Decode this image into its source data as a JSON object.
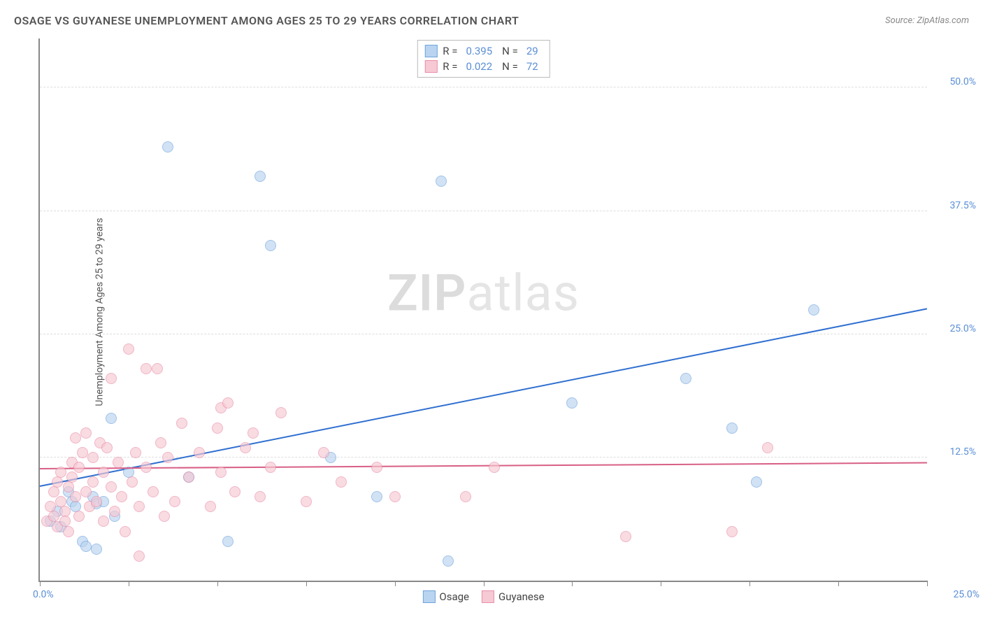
{
  "title": "OSAGE VS GUYANESE UNEMPLOYMENT AMONG AGES 25 TO 29 YEARS CORRELATION CHART",
  "source_prefix": "Source: ",
  "source_name": "ZipAtlas.com",
  "y_axis_label": "Unemployment Among Ages 25 to 29 years",
  "watermark_bold": "ZIP",
  "watermark_light": "atlas",
  "chart": {
    "type": "scatter",
    "xlim": [
      0,
      25
    ],
    "ylim": [
      0,
      55
    ],
    "x_tick_positions": [
      0,
      2.5,
      5,
      7.5,
      10,
      12.5,
      15,
      17.5,
      20,
      22.5,
      25
    ],
    "x_tick_label_left": "0.0%",
    "x_tick_label_right": "25.0%",
    "y_gridlines": [
      12.5,
      25.0,
      37.5,
      50.0
    ],
    "y_tick_labels": [
      "12.5%",
      "25.0%",
      "37.5%",
      "50.0%"
    ],
    "grid_color": "#dddddd",
    "axis_color": "#888888",
    "background_color": "#ffffff",
    "marker_size": 16,
    "marker_opacity": 0.65,
    "series": [
      {
        "name": "Osage",
        "fill": "#b9d4f0",
        "stroke": "#6fa3dd",
        "r_label": "R =",
        "r_value": "0.395",
        "n_label": "N =",
        "n_value": "29",
        "trend": {
          "x1": 0,
          "y1": 9.5,
          "x2": 25,
          "y2": 27.5,
          "color": "#2f6fd0",
          "width": 2
        },
        "points": [
          [
            0.3,
            6.0
          ],
          [
            0.5,
            7.0
          ],
          [
            0.6,
            5.5
          ],
          [
            0.8,
            9.0
          ],
          [
            0.9,
            8.0
          ],
          [
            1.0,
            7.5
          ],
          [
            1.2,
            4.0
          ],
          [
            1.3,
            3.5
          ],
          [
            1.5,
            8.5
          ],
          [
            1.6,
            3.2
          ],
          [
            1.6,
            7.8
          ],
          [
            1.8,
            8.0
          ],
          [
            2.0,
            16.5
          ],
          [
            2.1,
            6.5
          ],
          [
            2.5,
            11.0
          ],
          [
            3.6,
            44.0
          ],
          [
            4.2,
            10.5
          ],
          [
            5.3,
            4.0
          ],
          [
            6.2,
            41.0
          ],
          [
            6.5,
            34.0
          ],
          [
            8.2,
            12.5
          ],
          [
            9.5,
            8.5
          ],
          [
            11.3,
            40.5
          ],
          [
            11.5,
            2.0
          ],
          [
            15.0,
            18.0
          ],
          [
            18.2,
            20.5
          ],
          [
            19.5,
            15.5
          ],
          [
            21.8,
            27.5
          ],
          [
            20.2,
            10.0
          ]
        ]
      },
      {
        "name": "Guyanese",
        "fill": "#f6c9d4",
        "stroke": "#e98fa8",
        "r_label": "R =",
        "r_value": "0.022",
        "n_label": "N =",
        "n_value": "72",
        "trend": {
          "x1": 0,
          "y1": 11.3,
          "x2": 25,
          "y2": 11.9,
          "color": "#d85f85",
          "width": 2
        },
        "points": [
          [
            0.2,
            6.0
          ],
          [
            0.3,
            7.5
          ],
          [
            0.4,
            6.5
          ],
          [
            0.4,
            9.0
          ],
          [
            0.5,
            5.5
          ],
          [
            0.5,
            10.0
          ],
          [
            0.6,
            8.0
          ],
          [
            0.6,
            11.0
          ],
          [
            0.7,
            7.0
          ],
          [
            0.7,
            6.0
          ],
          [
            0.8,
            9.5
          ],
          [
            0.8,
            5.0
          ],
          [
            0.9,
            10.5
          ],
          [
            0.9,
            12.0
          ],
          [
            1.0,
            8.5
          ],
          [
            1.0,
            14.5
          ],
          [
            1.1,
            6.5
          ],
          [
            1.1,
            11.5
          ],
          [
            1.2,
            13.0
          ],
          [
            1.3,
            9.0
          ],
          [
            1.3,
            15.0
          ],
          [
            1.4,
            7.5
          ],
          [
            1.5,
            10.0
          ],
          [
            1.5,
            12.5
          ],
          [
            1.6,
            8.0
          ],
          [
            1.7,
            14.0
          ],
          [
            1.8,
            6.0
          ],
          [
            1.8,
            11.0
          ],
          [
            1.9,
            13.5
          ],
          [
            2.0,
            20.5
          ],
          [
            2.0,
            9.5
          ],
          [
            2.1,
            7.0
          ],
          [
            2.2,
            12.0
          ],
          [
            2.3,
            8.5
          ],
          [
            2.4,
            5.0
          ],
          [
            2.5,
            23.5
          ],
          [
            2.6,
            10.0
          ],
          [
            2.7,
            13.0
          ],
          [
            2.8,
            7.5
          ],
          [
            2.8,
            2.5
          ],
          [
            3.0,
            11.5
          ],
          [
            3.0,
            21.5
          ],
          [
            3.2,
            9.0
          ],
          [
            3.3,
            21.5
          ],
          [
            3.4,
            14.0
          ],
          [
            3.5,
            6.5
          ],
          [
            3.6,
            12.5
          ],
          [
            3.8,
            8.0
          ],
          [
            4.0,
            16.0
          ],
          [
            4.2,
            10.5
          ],
          [
            4.5,
            13.0
          ],
          [
            4.8,
            7.5
          ],
          [
            5.0,
            15.5
          ],
          [
            5.1,
            11.0
          ],
          [
            5.1,
            17.5
          ],
          [
            5.3,
            18.0
          ],
          [
            5.5,
            9.0
          ],
          [
            5.8,
            13.5
          ],
          [
            6.0,
            15.0
          ],
          [
            6.2,
            8.5
          ],
          [
            6.5,
            11.5
          ],
          [
            6.8,
            17.0
          ],
          [
            7.5,
            8.0
          ],
          [
            8.0,
            13.0
          ],
          [
            8.5,
            10.0
          ],
          [
            9.5,
            11.5
          ],
          [
            10.0,
            8.5
          ],
          [
            12.0,
            8.5
          ],
          [
            12.8,
            11.5
          ],
          [
            16.5,
            4.5
          ],
          [
            20.5,
            13.5
          ],
          [
            19.5,
            5.0
          ]
        ]
      }
    ]
  }
}
